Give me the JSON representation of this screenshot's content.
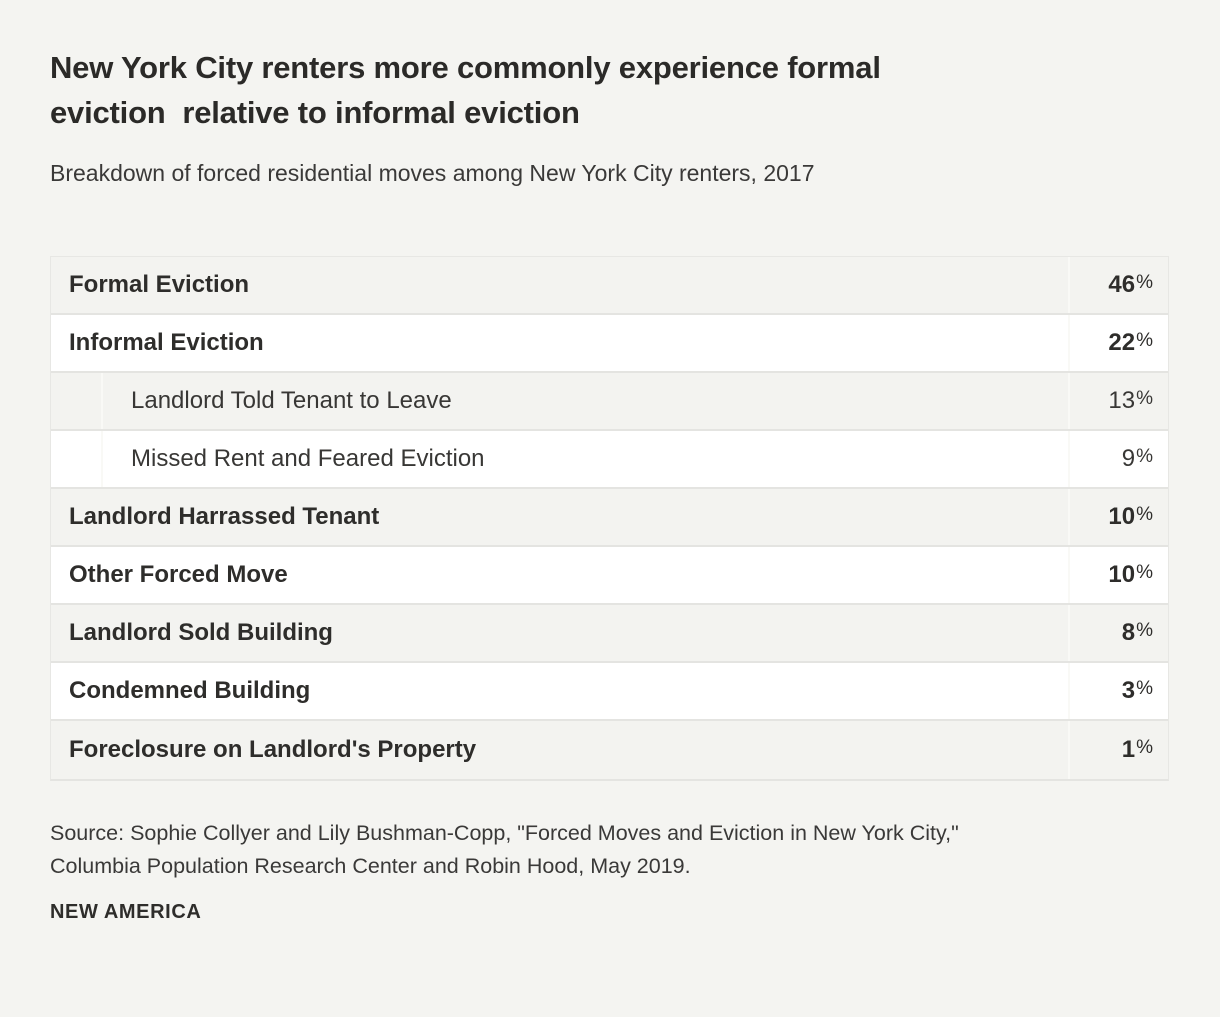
{
  "header": {
    "title": "New York City renters more commonly experience formal\neviction  relative to informal eviction",
    "subtitle": "Breakdown of forced residential moves among New York City renters, 2017"
  },
  "table": {
    "percent_sign": "%",
    "rows": [
      {
        "label": "Formal Eviction",
        "value": "46",
        "style": "main"
      },
      {
        "label": "Informal Eviction",
        "value": "22",
        "style": "main"
      },
      {
        "label": "Landlord Told Tenant to Leave",
        "value": "13",
        "style": "sub"
      },
      {
        "label": "Missed Rent and Feared Eviction",
        "value": "9",
        "style": "sub"
      },
      {
        "label": "Landlord Harrassed Tenant",
        "value": "10",
        "style": "main"
      },
      {
        "label": "Other Forced Move",
        "value": "10",
        "style": "main"
      },
      {
        "label": "Landlord Sold Building",
        "value": "8",
        "style": "main"
      },
      {
        "label": "Condemned Building",
        "value": "3",
        "style": "main"
      },
      {
        "label": "Foreclosure on Landlord's Property",
        "value": "1",
        "style": "main"
      }
    ]
  },
  "footer": {
    "source": "Source: Sophie Collyer and Lily Bushman-Copp, \"Forced Moves and Eviction in New York City,\"\nColumbia Population Research Center and Robin Hood, May 2019.",
    "brand": "NEW AMERICA"
  },
  "colors": {
    "page_background": "#f4f4f1",
    "row_shaded": "#f3f3f0",
    "row_plain": "#ffffff",
    "row_separator": "#e4e4e1",
    "column_divider": "#f9f9f6",
    "text_dark": "#2e2d2b"
  },
  "chart_data": {
    "type": "table",
    "title": "New York City renters more commonly experience formal eviction  relative to informal eviction",
    "subtitle": "Breakdown of forced residential moves among New York City renters, 2017",
    "unit": "%",
    "rows": [
      {
        "category": "Formal Eviction",
        "value": 46,
        "level": 0
      },
      {
        "category": "Informal Eviction",
        "value": 22,
        "level": 0
      },
      {
        "category": "Landlord Told Tenant to Leave",
        "value": 13,
        "level": 1
      },
      {
        "category": "Missed Rent and Feared Eviction",
        "value": 9,
        "level": 1
      },
      {
        "category": "Landlord Harrassed Tenant",
        "value": 10,
        "level": 0
      },
      {
        "category": "Other Forced Move",
        "value": 10,
        "level": 0
      },
      {
        "category": "Landlord Sold Building",
        "value": 8,
        "level": 0
      },
      {
        "category": "Condemned Building",
        "value": 3,
        "level": 0
      },
      {
        "category": "Foreclosure on Landlord's Property",
        "value": 1,
        "level": 0
      }
    ],
    "layout": {
      "shaded_rows": "alternating starting with first row",
      "value_column": "right-aligned percentages",
      "sub_rows_indented": true
    },
    "source": "Source: Sophie Collyer and Lily Bushman-Copp, \"Forced Moves and Eviction in New York City,\" Columbia Population Research Center and Robin Hood, May 2019.",
    "branding": "NEW AMERICA"
  }
}
